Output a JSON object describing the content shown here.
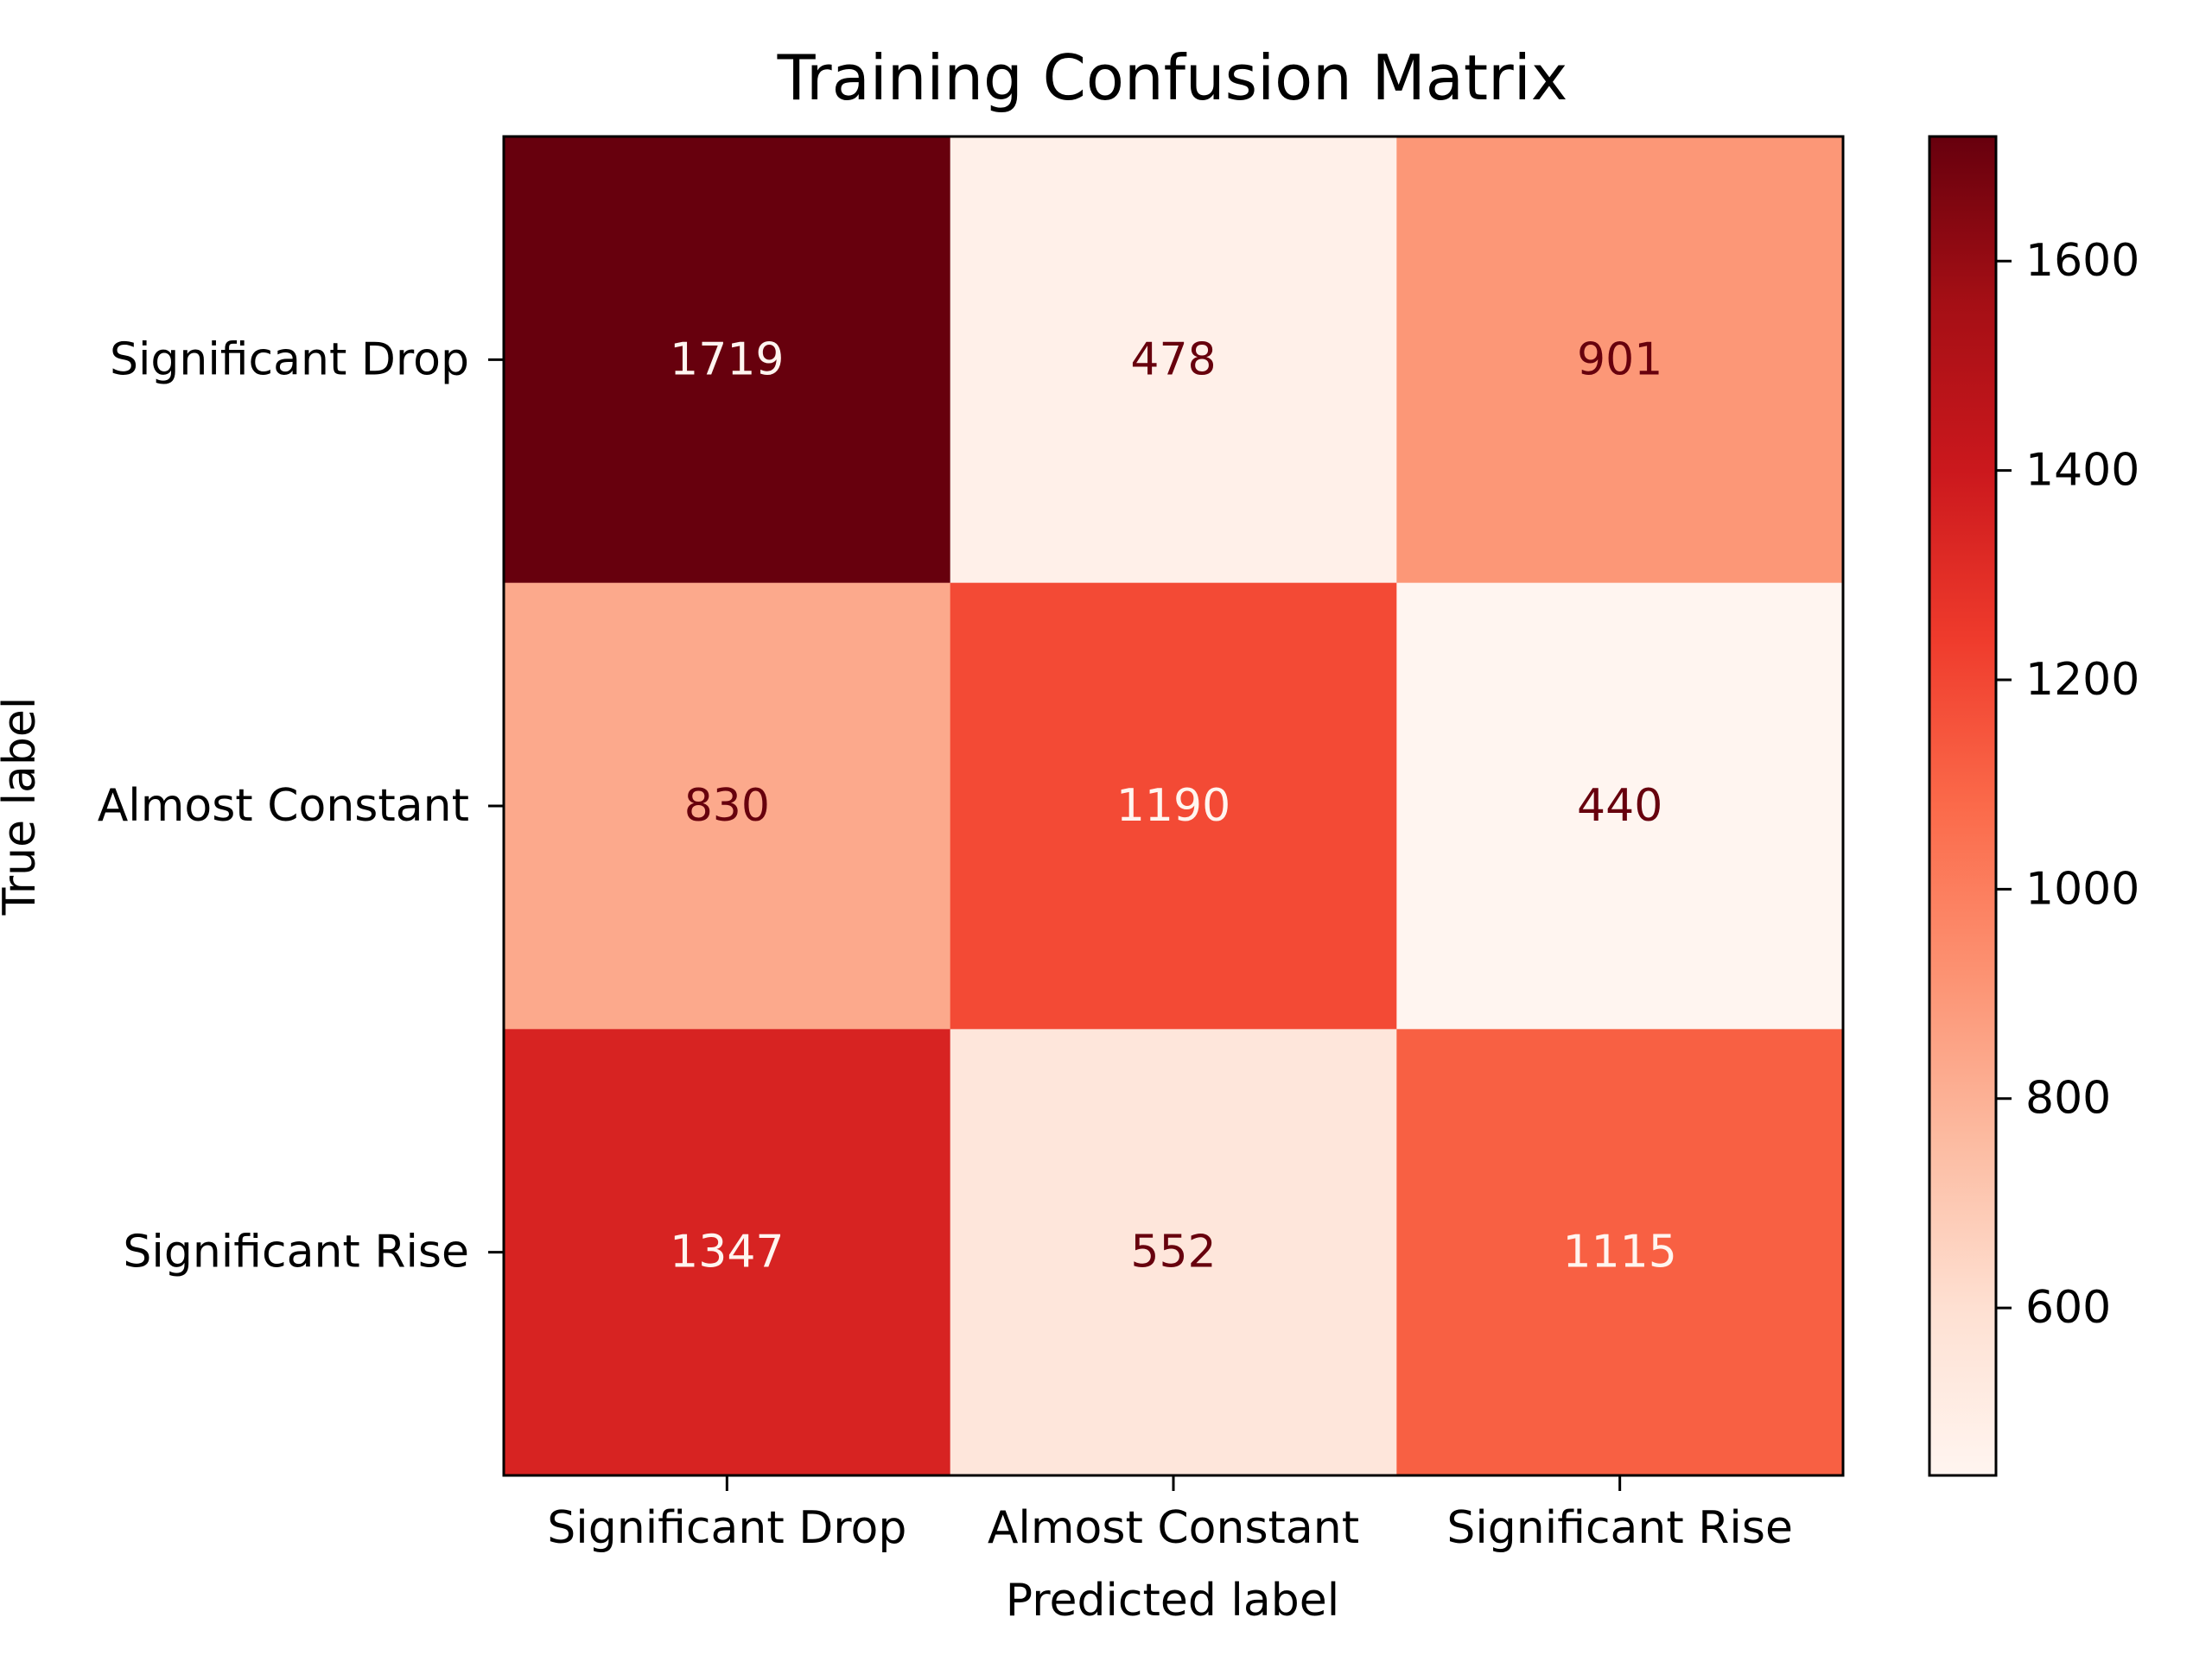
{
  "chart_data": {
    "type": "heatmap",
    "title": "Training Confusion Matrix",
    "xlabel": "Predicted label",
    "ylabel": "True label",
    "x_categories": [
      "Significant Drop",
      "Almost Constant",
      "Significant Rise"
    ],
    "y_categories": [
      "Significant Drop",
      "Almost Constant",
      "Significant Rise"
    ],
    "values": [
      [
        1719,
        478,
        901
      ],
      [
        830,
        1190,
        440
      ],
      [
        1347,
        552,
        1115
      ]
    ],
    "colormap": "Reds",
    "color_range": [
      440,
      1719
    ],
    "colorbar_ticks": [
      600,
      800,
      1000,
      1200,
      1400,
      1600
    ],
    "text_colors": {
      "light": "#fff5f0",
      "dark": "#67000d"
    }
  }
}
